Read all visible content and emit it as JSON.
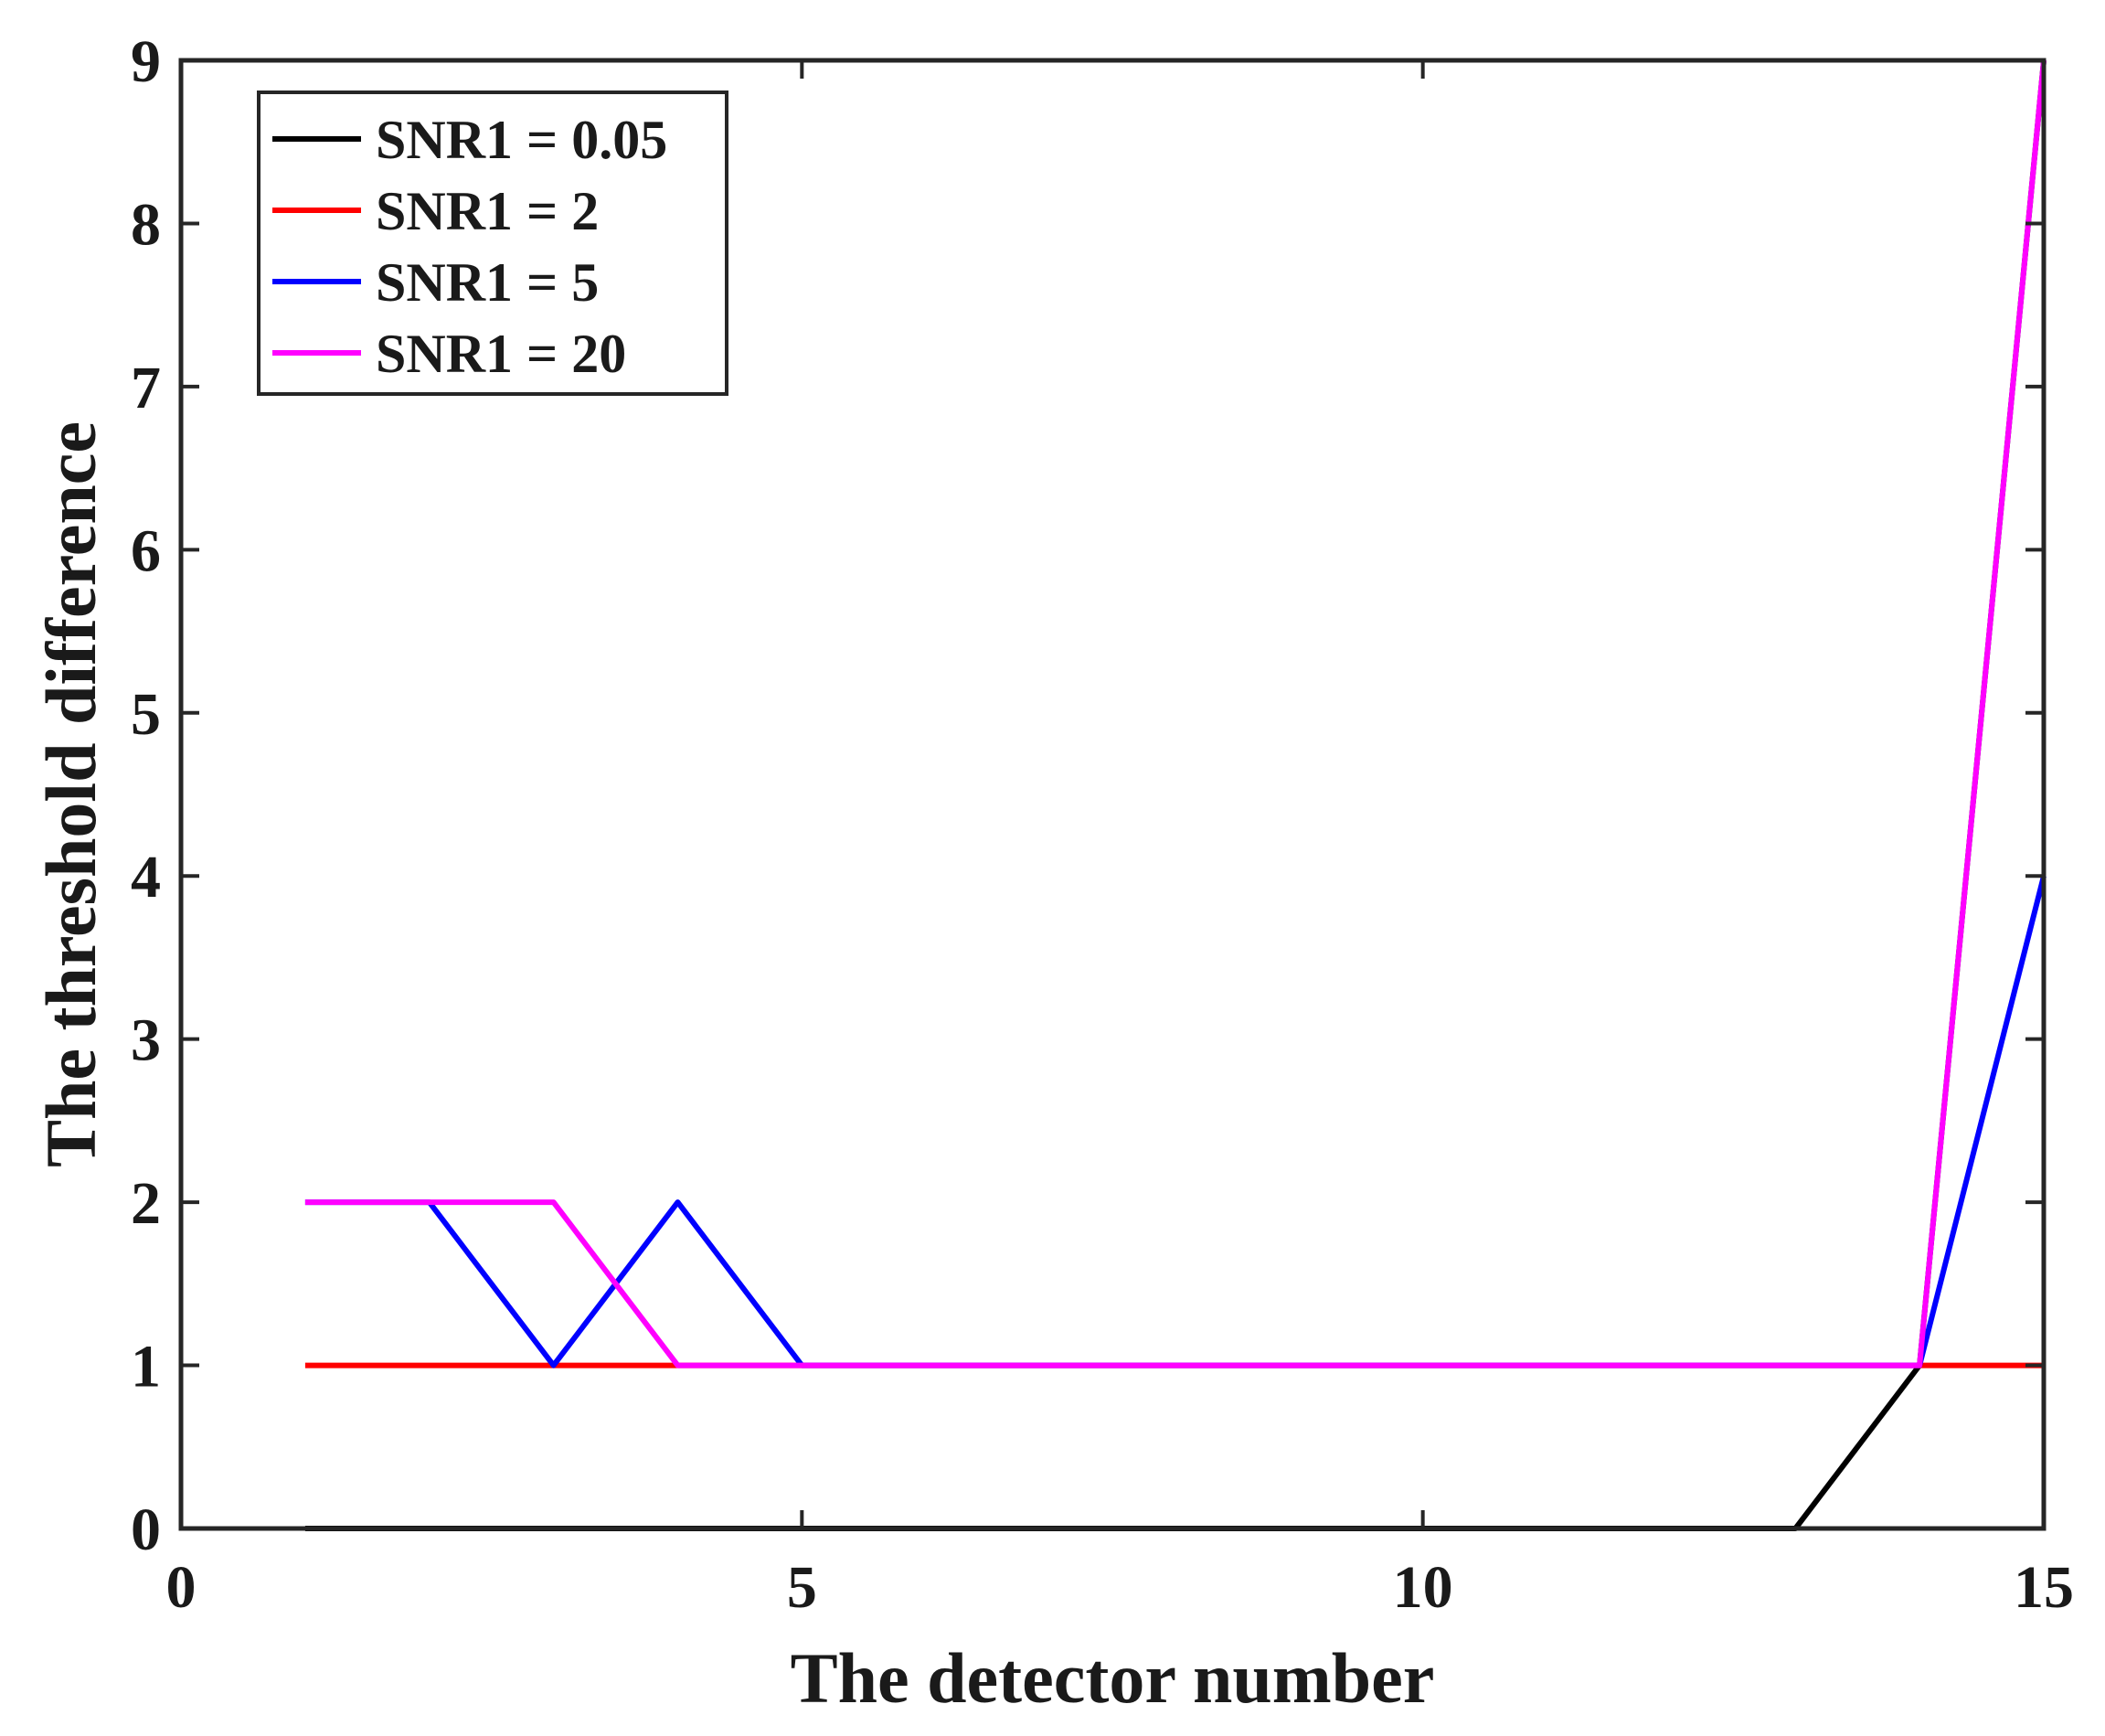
{
  "chart_data": {
    "type": "line",
    "title": "",
    "xlabel": "The detector number",
    "ylabel": "The threshold difference",
    "xlim": [
      0,
      15
    ],
    "ylim": [
      0,
      9
    ],
    "xticks": [
      0,
      5,
      10,
      15
    ],
    "yticks": [
      0,
      1,
      2,
      3,
      4,
      5,
      6,
      7,
      8,
      9
    ],
    "grid": false,
    "legend_position": "top-left",
    "x": [
      1,
      2,
      3,
      4,
      5,
      6,
      7,
      8,
      9,
      10,
      11,
      12,
      13,
      14,
      15
    ],
    "series": [
      {
        "name": "SNR1 = 0.05",
        "color": "#000000",
        "values": [
          0,
          0,
          0,
          0,
          0,
          0,
          0,
          0,
          0,
          0,
          0,
          0,
          0,
          1,
          9
        ]
      },
      {
        "name": "SNR1 = 2",
        "color": "#ff0000",
        "values": [
          1,
          1,
          1,
          1,
          1,
          1,
          1,
          1,
          1,
          1,
          1,
          1,
          1,
          1,
          1
        ]
      },
      {
        "name": "SNR1 = 5",
        "color": "#0000ff",
        "values": [
          2,
          2,
          1,
          2,
          1,
          1,
          1,
          1,
          1,
          1,
          1,
          1,
          1,
          1,
          4
        ]
      },
      {
        "name": "SNR1 = 20",
        "color": "#ff00ff",
        "values": [
          2,
          2,
          2,
          1,
          1,
          1,
          1,
          1,
          1,
          1,
          1,
          1,
          1,
          1,
          9
        ]
      }
    ]
  }
}
